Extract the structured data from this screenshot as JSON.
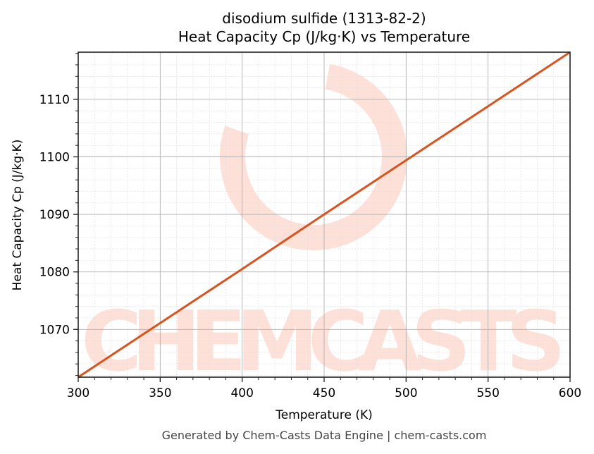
{
  "chart_data": {
    "type": "line",
    "title": "disodium sulfide (1313-82-2)",
    "subtitle": "Heat Capacity Cp (J/kg·K) vs Temperature",
    "xlabel": "Temperature (K)",
    "ylabel": "Heat Capacity Cp (J/kg·K)",
    "xlim": [
      300,
      600
    ],
    "ylim": [
      1061.7,
      1118.2
    ],
    "x_ticks": [
      300,
      350,
      400,
      450,
      500,
      550,
      600
    ],
    "y_ticks": [
      1070,
      1080,
      1090,
      1100,
      1110
    ],
    "x_minor_step": 10,
    "y_minor_step": 2,
    "grid": true,
    "legend": null,
    "series": [
      {
        "name": "Heat Capacity Cp",
        "color": "#d9531e",
        "x": [
          300,
          350,
          400,
          450,
          500,
          550,
          600
        ],
        "values": [
          1061.7,
          1071.1,
          1080.5,
          1090.0,
          1099.4,
          1108.8,
          1118.2
        ]
      }
    ],
    "watermark": "CHEMCASTS"
  },
  "footer": "Generated by Chem-Casts Data Engine | chem-casts.com"
}
